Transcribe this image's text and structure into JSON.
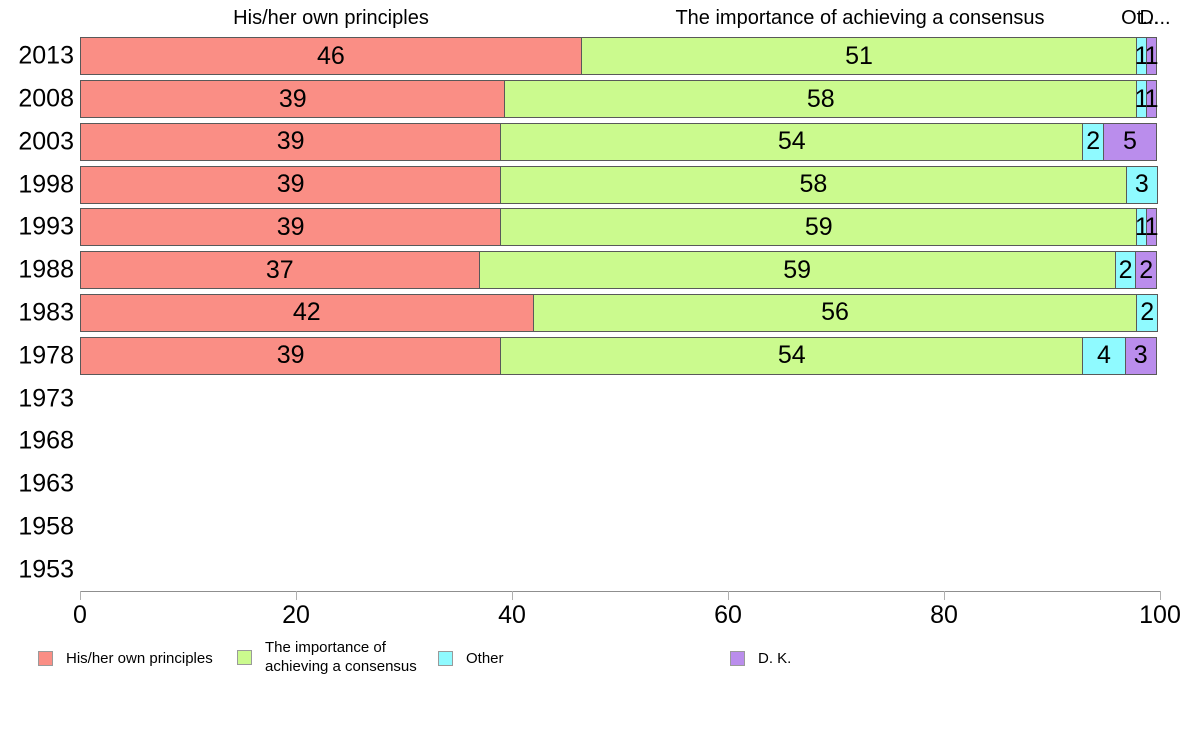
{
  "chart_data": {
    "type": "bar",
    "orientation": "horizontal",
    "stacked": true,
    "normalized_to_100": true,
    "title": "",
    "xlabel": "",
    "ylabel": "",
    "xlim": [
      0,
      100
    ],
    "x_ticks": [
      0,
      20,
      40,
      60,
      80,
      100
    ],
    "grid": false,
    "legend_position": "bottom",
    "categories": [
      "2013",
      "2008",
      "2003",
      "1998",
      "1993",
      "1988",
      "1983",
      "1978",
      "1973",
      "1968",
      "1963",
      "1958",
      "1953"
    ],
    "series": [
      {
        "name": "His/her own principles",
        "color": "#FA8E85",
        "values": [
          46,
          39,
          39,
          39,
          39,
          37,
          42,
          39,
          null,
          null,
          null,
          null,
          null
        ]
      },
      {
        "name": "The importance of achieving a consensus",
        "color": "#CBFA8E",
        "values": [
          51,
          58,
          54,
          58,
          59,
          59,
          56,
          54,
          null,
          null,
          null,
          null,
          null
        ]
      },
      {
        "name": "Other",
        "color": "#8FFAFF",
        "values": [
          1,
          1,
          2,
          3,
          1,
          2,
          2,
          4,
          null,
          null,
          null,
          null,
          null
        ]
      },
      {
        "name": "D. K.",
        "color": "#BA8DEC",
        "values": [
          1,
          1,
          5,
          0,
          1,
          2,
          0,
          3,
          null,
          null,
          null,
          null,
          null
        ]
      }
    ],
    "series_captions": [
      "His/her own principles",
      "The importance of achieving a consensus",
      "Ot...",
      "D..."
    ],
    "bar_border_color": "#595959",
    "value_label_color": "#000000"
  }
}
